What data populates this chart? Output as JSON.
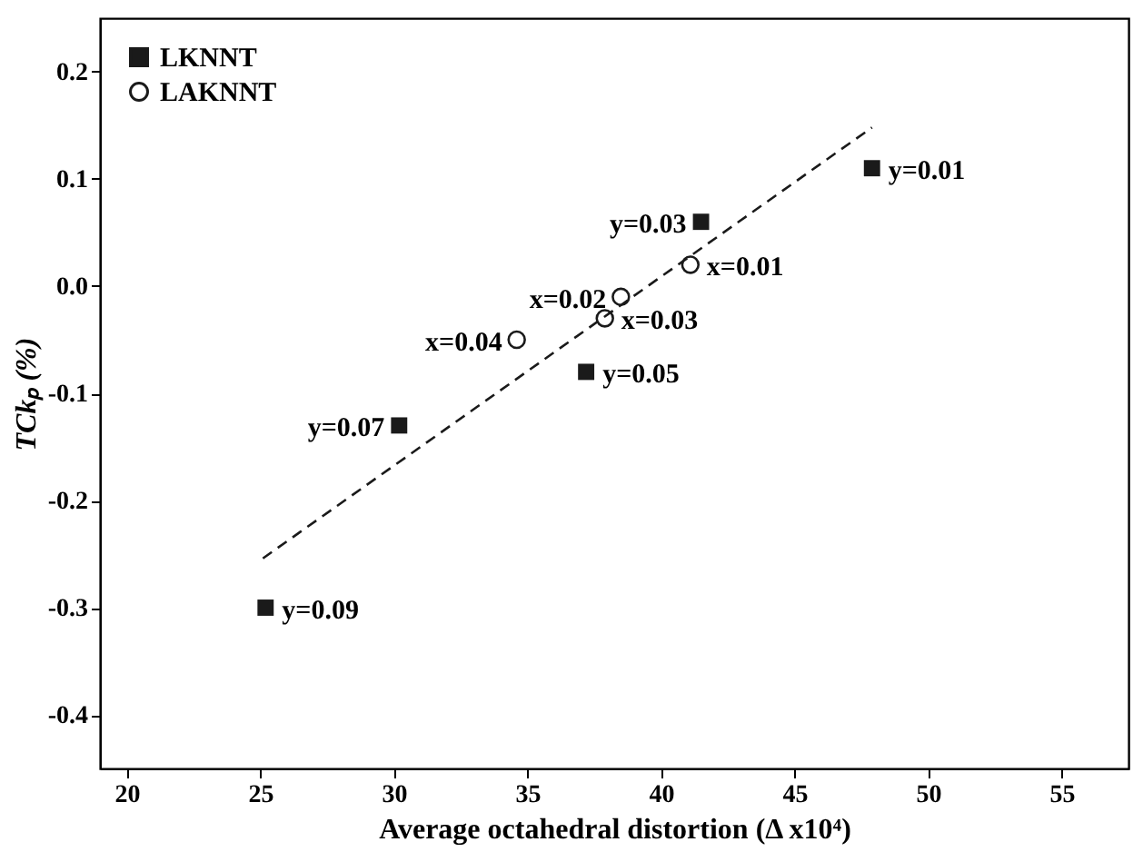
{
  "chart_data": {
    "type": "scatter",
    "xlabel": "Average octahedral distortion (Δ x10⁴)",
    "ylabel": "TCkₚ (%)",
    "xlim": [
      19,
      57.5
    ],
    "ylim": [
      -0.45,
      0.25
    ],
    "xticks": [
      20,
      25,
      30,
      35,
      40,
      45,
      50,
      55
    ],
    "yticks": [
      {
        "value": -0.4,
        "label": "-0.4"
      },
      {
        "value": -0.3,
        "label": "-0.3"
      },
      {
        "value": -0.2,
        "label": "-0.2"
      },
      {
        "value": -0.1,
        "label": "-0.1"
      },
      {
        "value": 0,
        "label": "0.0"
      },
      {
        "value": 0.1,
        "label": "0.1"
      },
      {
        "value": 0.2,
        "label": "0.2"
      }
    ],
    "grid": false,
    "legend": "top left",
    "series": [
      {
        "name": "LKNNT",
        "marker": "square",
        "color": "#1a1a1a",
        "x": [
          47.9,
          41.5,
          37.2,
          30.2,
          25.2
        ],
        "values": [
          0.11,
          0.06,
          -0.08,
          -0.13,
          -0.3
        ]
      },
      {
        "name": "LAKNNT",
        "marker": "circle",
        "color": "#1a1a1a",
        "x": [
          41.1,
          38.5,
          37.9,
          34.6
        ],
        "values": [
          0.02,
          -0.01,
          -0.03,
          -0.05
        ]
      },
      {
        "type": "line",
        "line_style": "dashed",
        "color": "#1a1a1a",
        "x": [
          25.1,
          47.9
        ],
        "values": [
          -0.254,
          0.148
        ]
      }
    ],
    "annotations": [
      {
        "text": "y=0.01",
        "x": 47.9,
        "y": 0.11
      },
      {
        "text": "y=0.03",
        "x": 41.5,
        "y": 0.06
      },
      {
        "text": "y=0.05",
        "x": 37.2,
        "y": -0.08
      },
      {
        "text": "y=0.07",
        "x": 30.2,
        "y": -0.13
      },
      {
        "text": "y=0.09",
        "x": 25.2,
        "y": -0.3
      },
      {
        "text": "x=0.01",
        "x": 41.1,
        "y": 0.02
      },
      {
        "text": "x=0.02",
        "x": 38.5,
        "y": -0.01
      },
      {
        "text": "x=0.03",
        "x": 37.9,
        "y": -0.03
      },
      {
        "text": "x=0.04",
        "x": 34.6,
        "y": -0.05
      }
    ]
  }
}
